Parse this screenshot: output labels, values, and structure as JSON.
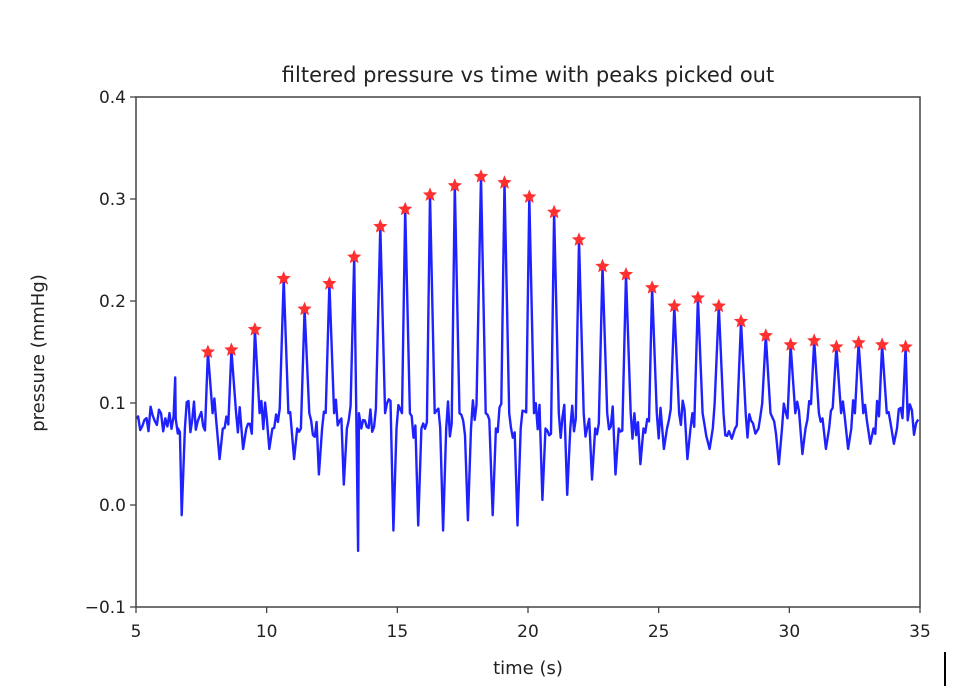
{
  "chart_data": {
    "type": "line",
    "title": "filtered pressure vs time with peaks picked out",
    "xlabel": "time (s)",
    "ylabel": "pressure (mmHg)",
    "xlim": [
      5,
      35
    ],
    "ylim": [
      -0.1,
      0.4
    ],
    "xticks": [
      5,
      10,
      15,
      20,
      25,
      30,
      35
    ],
    "yticks": [
      -0.1,
      0.0,
      0.1,
      0.2,
      0.3,
      0.4
    ],
    "xtick_labels": [
      "5",
      "10",
      "15",
      "20",
      "25",
      "30",
      "35"
    ],
    "ytick_labels": [
      "−0.1",
      "0.0",
      "0.1",
      "0.2",
      "0.3",
      "0.4"
    ],
    "grid": false,
    "colors": {
      "signal": "#1f22ff",
      "peaks": "#ff3030"
    },
    "baseline": 0.085,
    "start_noise_segment": {
      "x": [
        5.0,
        6.7
      ],
      "level": 0.085
    },
    "series": [
      {
        "kind": "peaks",
        "marker": "star",
        "x": [
          7.75,
          8.65,
          9.55,
          10.65,
          11.45,
          12.4,
          13.35,
          14.35,
          15.3,
          16.25,
          17.2,
          18.2,
          19.1,
          20.05,
          21.0,
          21.95,
          22.85,
          23.75,
          24.75,
          25.6,
          26.5,
          27.3,
          28.15,
          29.1,
          30.05,
          30.95,
          31.8,
          32.65,
          33.55,
          34.45
        ],
        "y": [
          0.15,
          0.152,
          0.172,
          0.222,
          0.192,
          0.217,
          0.243,
          0.273,
          0.29,
          0.304,
          0.313,
          0.322,
          0.316,
          0.302,
          0.287,
          0.26,
          0.234,
          0.226,
          0.213,
          0.195,
          0.203,
          0.195,
          0.18,
          0.166,
          0.157,
          0.161,
          0.155,
          0.159,
          0.157,
          0.155
        ]
      },
      {
        "kind": "troughs",
        "x": [
          6.75,
          8.2,
          9.1,
          10.1,
          11.05,
          12.0,
          12.95,
          13.5,
          14.85,
          15.8,
          16.75,
          17.7,
          18.65,
          19.6,
          20.55,
          21.5,
          22.45,
          23.35,
          24.3,
          25.2,
          26.1,
          26.95,
          27.8,
          28.7,
          29.6,
          30.5,
          31.4,
          32.25,
          33.1,
          34.0
        ],
        "y": [
          -0.01,
          0.045,
          0.055,
          0.055,
          0.045,
          0.03,
          0.02,
          -0.045,
          -0.025,
          -0.02,
          -0.025,
          -0.015,
          -0.01,
          -0.02,
          0.005,
          0.01,
          0.025,
          0.03,
          0.04,
          0.055,
          0.045,
          0.055,
          0.065,
          0.07,
          0.04,
          0.05,
          0.055,
          0.055,
          0.06,
          0.06
        ]
      }
    ]
  }
}
